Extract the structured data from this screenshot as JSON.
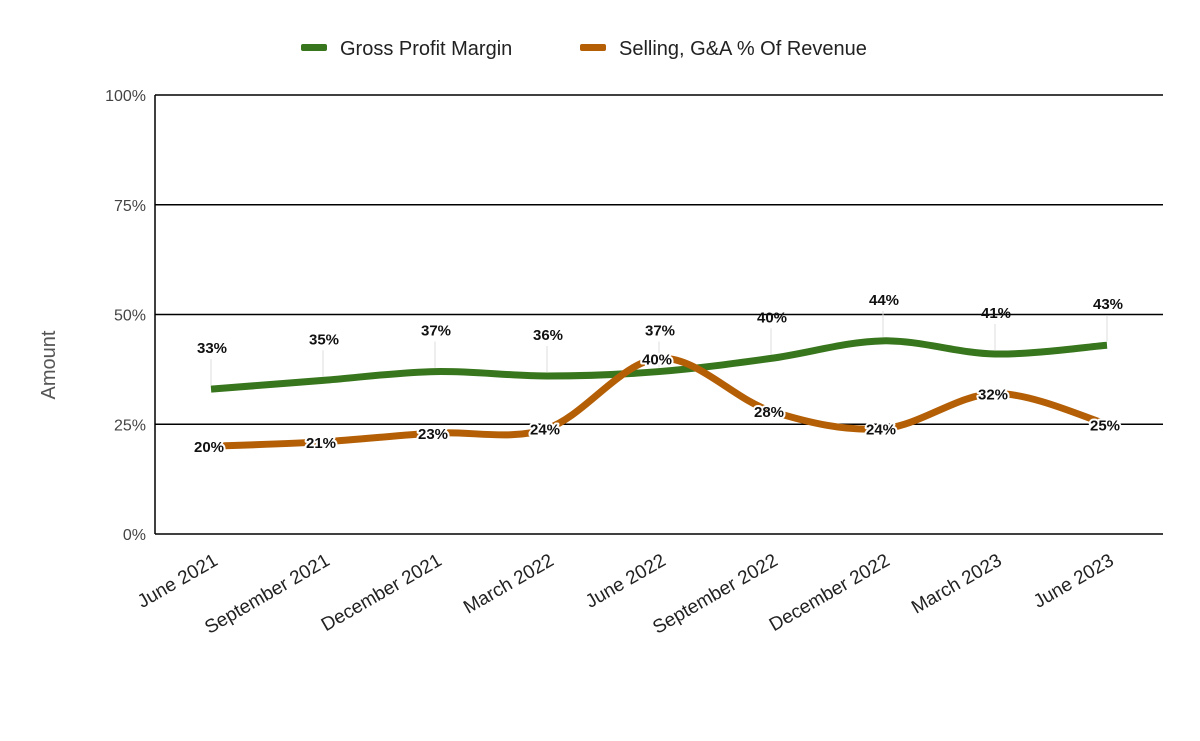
{
  "chart_data": {
    "type": "line",
    "title": "",
    "xlabel": "",
    "ylabel": "Amount",
    "ylim": [
      0,
      100
    ],
    "y_ticks": [
      "0%",
      "25%",
      "50%",
      "75%",
      "100%"
    ],
    "y_tick_values": [
      0,
      25,
      50,
      75,
      100
    ],
    "categories": [
      "June 2021",
      "September 2021",
      "December 2021",
      "March 2022",
      "June 2022",
      "September 2022",
      "December 2022",
      "March 2023",
      "June 2023"
    ],
    "grid": true,
    "legend_position": "top",
    "smooth": true,
    "series": [
      {
        "name": "Gross Profit Margin",
        "color": "#38761d",
        "values": [
          33,
          35,
          37,
          36,
          37,
          40,
          44,
          41,
          43
        ],
        "labels": [
          "33%",
          "35%",
          "37%",
          "36%",
          "37%",
          "40%",
          "44%",
          "41%",
          "43%"
        ]
      },
      {
        "name": "Selling, G&A % Of Revenue",
        "color": "#b45f06",
        "values": [
          20,
          21,
          23,
          24,
          40,
          28,
          24,
          32,
          25
        ],
        "labels": [
          "20%",
          "21%",
          "23%",
          "24%",
          "40%",
          "28%",
          "24%",
          "32%",
          "25%"
        ]
      }
    ]
  }
}
